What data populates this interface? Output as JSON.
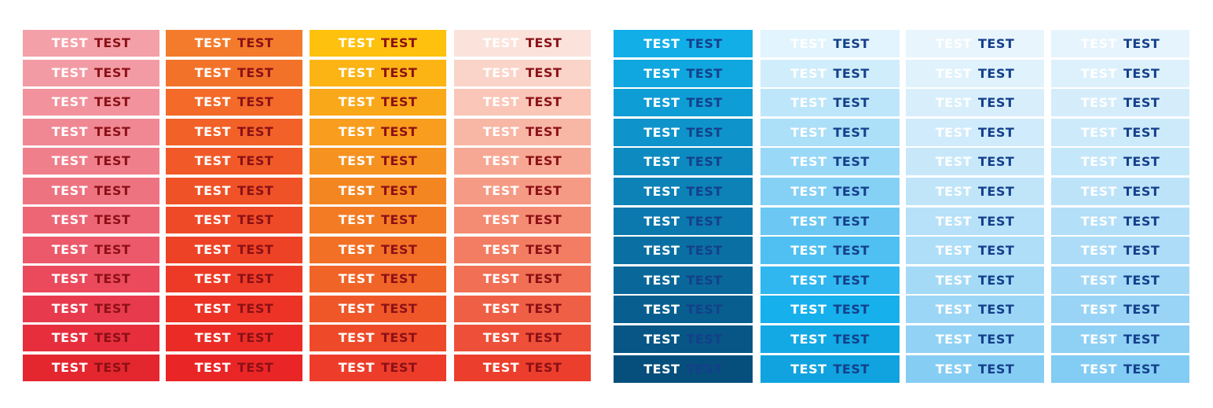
{
  "label_light": "TEST",
  "label_dark_red": "TEST",
  "label_dark_blue": "TEST",
  "text_colors": {
    "light": "#ffffff",
    "dark_red": "#8b1016",
    "dark_blue": "#143f8a"
  },
  "columns": [
    {
      "id": "pink",
      "dark_text": "dark_red",
      "colors": [
        "#f4a0a8",
        "#f39ba4",
        "#f1929c",
        "#f08894",
        "#ef7f8b",
        "#ee7381",
        "#ed6676",
        "#ec596a",
        "#ea4a5c",
        "#e83a4d",
        "#e62e3d",
        "#e4262f"
      ]
    },
    {
      "id": "orange",
      "dark_text": "dark_red",
      "colors": [
        "#f47b2b",
        "#f3722a",
        "#f36a29",
        "#f26128",
        "#f15a28",
        "#f05227",
        "#ef4a27",
        "#ee4226",
        "#ed3a26",
        "#ec3326",
        "#eb2c26",
        "#ea2526"
      ]
    },
    {
      "id": "yellow",
      "dark_text": "dark_red",
      "colors": [
        "#fdc10e",
        "#fbb414",
        "#f9a819",
        "#f89d1d",
        "#f69220",
        "#f48622",
        "#f37b24",
        "#f27026",
        "#f16427",
        "#ef5728",
        "#ee4a29",
        "#ed3d2a"
      ]
    },
    {
      "id": "peach",
      "dark_text": "dark_red",
      "colors": [
        "#fbe3dc",
        "#fad4c8",
        "#f9c6b7",
        "#f8b6a5",
        "#f7a894",
        "#f59a84",
        "#f48b73",
        "#f27d63",
        "#f16f54",
        "#ef5f45",
        "#ee4f38",
        "#ec3e2c"
      ]
    },
    {
      "id": "deep-blue",
      "dark_text": "dark_blue",
      "colors": [
        "#12aee8",
        "#10a6df",
        "#0f9dd5",
        "#0e94cb",
        "#0d8bc1",
        "#0c82b7",
        "#0b79ad",
        "#0a70a3",
        "#096899",
        "#085f8f",
        "#075685",
        "#064e7c"
      ]
    },
    {
      "id": "sky-blue",
      "dark_text": "dark_blue",
      "colors": [
        "#e2f4fd",
        "#d0edfb",
        "#bee6fa",
        "#acdff8",
        "#99d8f7",
        "#85d0f5",
        "#6cc8f3",
        "#4fc0f1",
        "#30b7ef",
        "#16b0ec",
        "#12a9e5",
        "#10a3df"
      ]
    },
    {
      "id": "pale-blue-a",
      "dark_text": "dark_blue",
      "colors": [
        "#e8f5fd",
        "#e0f2fc",
        "#d8eefb",
        "#d0ebfb",
        "#c8e8fa",
        "#c0e5f9",
        "#b7e1f8",
        "#aedef8",
        "#a5daf7",
        "#9cd6f6",
        "#92d2f5",
        "#86cdf4"
      ]
    },
    {
      "id": "pale-blue-b",
      "dark_text": "dark_blue",
      "colors": [
        "#e6f4fd",
        "#ddf1fc",
        "#d5edfb",
        "#cdeafb",
        "#c5e7fa",
        "#bde3f9",
        "#b4dff8",
        "#acdcf7",
        "#a3d8f7",
        "#99d4f6",
        "#8fd0f5",
        "#83ccf4"
      ]
    }
  ]
}
